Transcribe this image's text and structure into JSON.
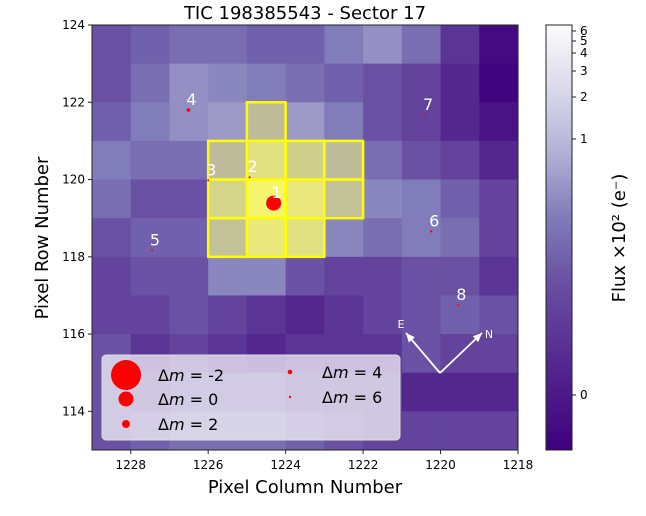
{
  "chart_data": {
    "type": "heatmap",
    "title": "TIC 198385543 - Sector 17",
    "xlabel": "Pixel Column Number",
    "ylabel": "Pixel Row Number",
    "xlim": [
      1229,
      1218
    ],
    "ylim": [
      113,
      124
    ],
    "xticks": [
      1228,
      1226,
      1224,
      1222,
      1220,
      1218
    ],
    "yticks": [
      114,
      116,
      118,
      120,
      122,
      124
    ],
    "colormap": "Purples",
    "intensity_rows_top_to_bottom": [
      [
        0.35,
        0.4,
        0.45,
        0.45,
        0.4,
        0.4,
        0.5,
        0.6,
        0.45,
        0.25,
        0.05
      ],
      [
        0.35,
        0.45,
        0.6,
        0.55,
        0.5,
        0.45,
        0.4,
        0.35,
        0.3,
        0.2,
        0.02
      ],
      [
        0.4,
        0.5,
        0.6,
        0.65,
        0.7,
        0.65,
        0.5,
        0.35,
        0.3,
        0.2,
        0.1
      ],
      [
        0.5,
        0.45,
        0.45,
        0.7,
        0.85,
        0.78,
        0.7,
        0.45,
        0.35,
        0.3,
        0.2
      ],
      [
        0.45,
        0.35,
        0.35,
        0.8,
        0.95,
        0.88,
        0.72,
        0.55,
        0.5,
        0.4,
        0.3
      ],
      [
        0.35,
        0.4,
        0.4,
        0.72,
        0.88,
        0.85,
        0.55,
        0.45,
        0.5,
        0.45,
        0.3
      ],
      [
        0.3,
        0.35,
        0.35,
        0.55,
        0.55,
        0.35,
        0.3,
        0.3,
        0.35,
        0.35,
        0.25
      ],
      [
        0.3,
        0.3,
        0.35,
        0.3,
        0.25,
        0.2,
        0.25,
        0.3,
        0.35,
        0.4,
        0.35
      ],
      [
        0.35,
        0.25,
        0.3,
        0.25,
        0.2,
        0.25,
        0.25,
        0.25,
        0.35,
        0.3,
        0.3
      ],
      [
        0.35,
        0.3,
        0.35,
        0.35,
        0.35,
        0.3,
        0.3,
        0.3,
        0.2,
        0.2,
        0.2
      ],
      [
        0.35,
        0.4,
        0.45,
        0.45,
        0.45,
        0.4,
        0.35,
        0.3,
        0.3,
        0.3,
        0.3
      ]
    ],
    "aperture_pixels": [
      {
        "col": 1224.5,
        "row": 121.5
      },
      {
        "col": 1225.5,
        "row": 120.5
      },
      {
        "col": 1224.5,
        "row": 120.5
      },
      {
        "col": 1223.5,
        "row": 120.5
      },
      {
        "col": 1222.5,
        "row": 120.5
      },
      {
        "col": 1225.5,
        "row": 119.5
      },
      {
        "col": 1224.5,
        "row": 119.5
      },
      {
        "col": 1223.5,
        "row": 119.5
      },
      {
        "col": 1222.5,
        "row": 119.5
      },
      {
        "col": 1225.5,
        "row": 118.5
      },
      {
        "col": 1224.5,
        "row": 118.5
      },
      {
        "col": 1223.5,
        "row": 118.5
      }
    ],
    "aperture_color": "#ffff00",
    "stars": [
      {
        "label": "1",
        "col": 1224.31,
        "row": 119.39,
        "delta_m": 0
      },
      {
        "label": "2",
        "col": 1224.93,
        "row": 120.06,
        "delta_m": 5.5
      },
      {
        "label": "3",
        "col": 1226.0,
        "row": 119.98,
        "delta_m": 6
      },
      {
        "label": "4",
        "col": 1226.51,
        "row": 121.8,
        "delta_m": 3
      },
      {
        "label": "5",
        "col": 1227.45,
        "row": 118.17,
        "delta_m": 5.5
      },
      {
        "label": "6",
        "col": 1220.24,
        "row": 118.66,
        "delta_m": 4
      },
      {
        "label": "7",
        "col": 1220.4,
        "row": 121.67,
        "delta_m": 6
      },
      {
        "label": "8",
        "col": 1219.54,
        "row": 116.75,
        "delta_m": 5.5
      }
    ],
    "star_color": "#ff0000",
    "legend": {
      "placement": "lower-left",
      "prefix": "Δ",
      "var": "m",
      "eq": " = ",
      "entries": [
        {
          "text": "-2",
          "delta_m": -2
        },
        {
          "text": "0",
          "delta_m": 0
        },
        {
          "text": "2",
          "delta_m": 2
        },
        {
          "text": "4",
          "delta_m": 4
        },
        {
          "text": "6",
          "delta_m": 6
        }
      ]
    },
    "compass": {
      "east": "E",
      "north": "N"
    },
    "colorbar": {
      "label": "Flux ×10² (e⁻)",
      "ticks": [
        "0",
        "1",
        "2",
        "3",
        "4",
        "5",
        "6"
      ]
    }
  }
}
